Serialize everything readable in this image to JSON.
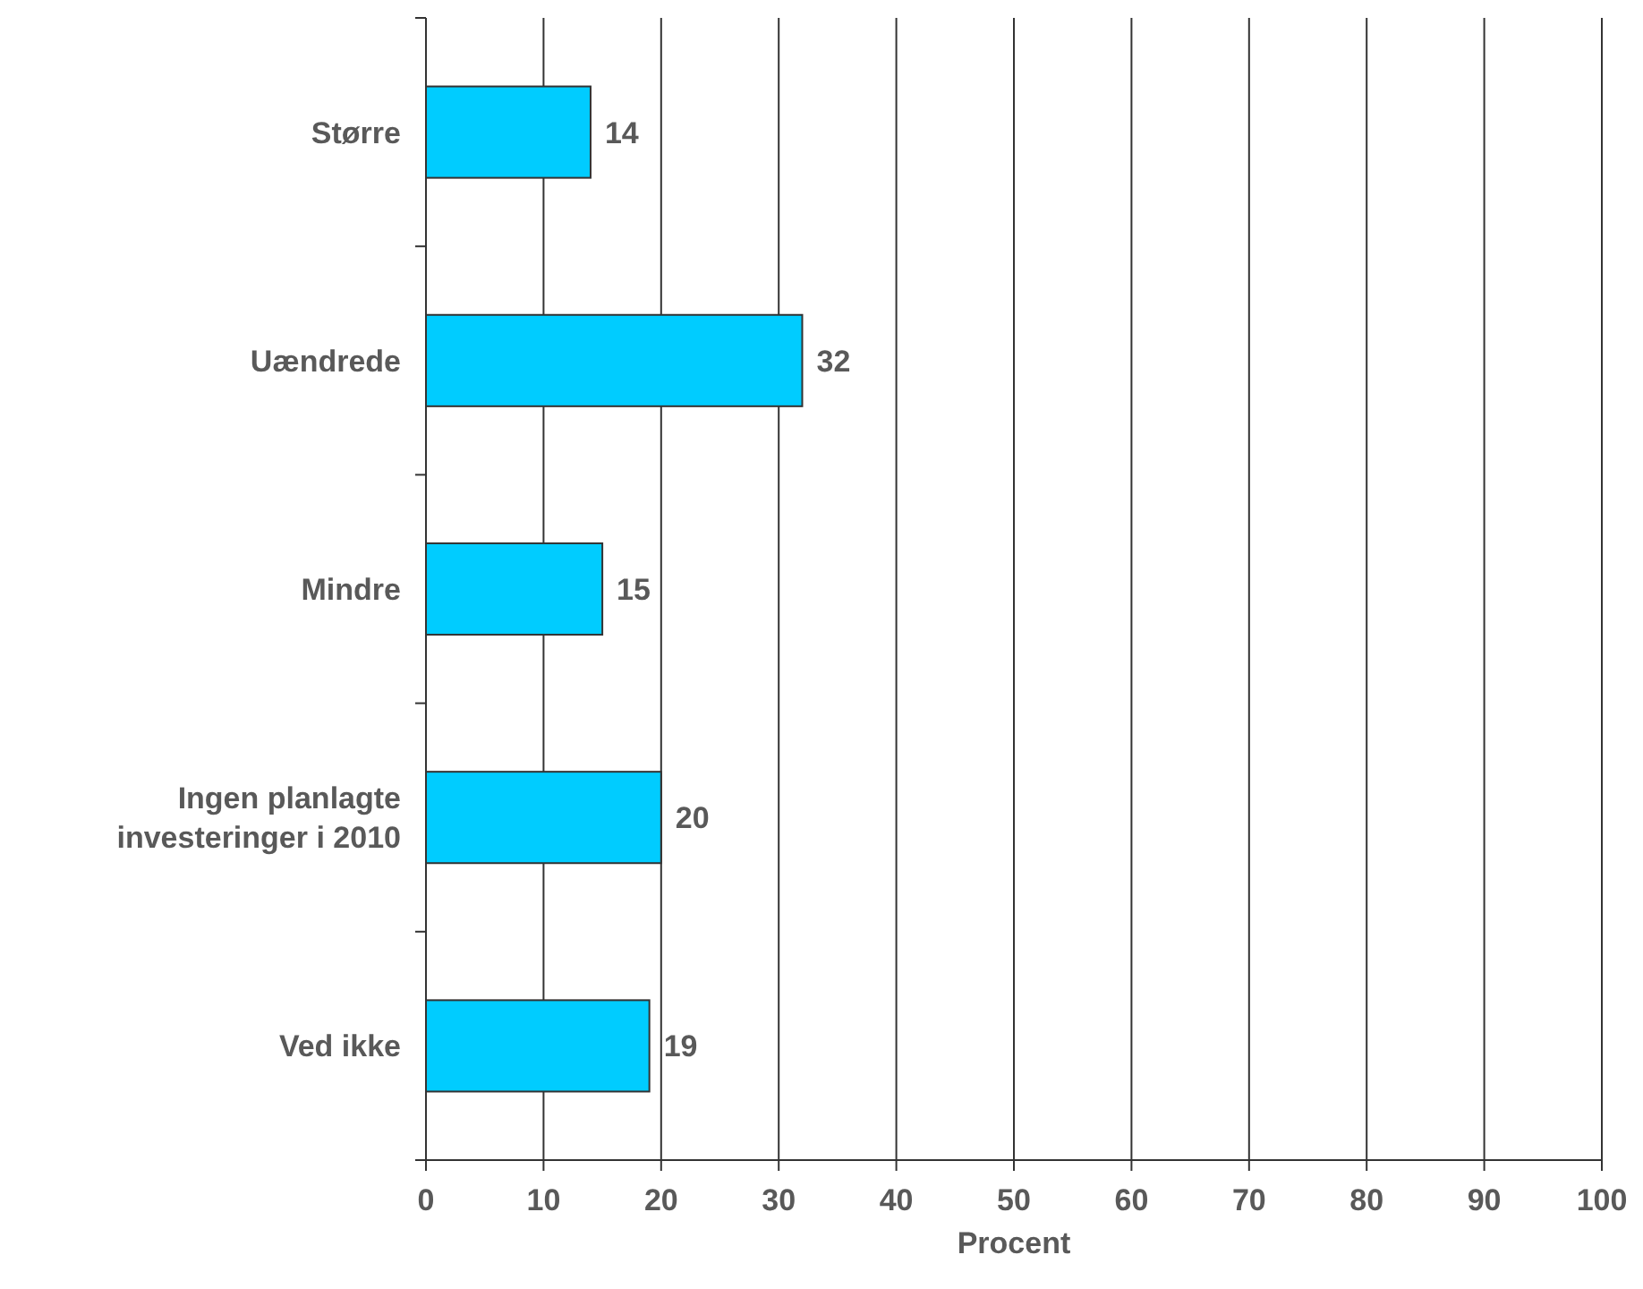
{
  "chart_data": {
    "type": "bar",
    "orientation": "horizontal",
    "xlabel": "Procent",
    "categories": [
      "Større",
      "Uændrede",
      "Mindre",
      "Ingen planlagte investeringer i 2010",
      "Ved ikke"
    ],
    "values": [
      14,
      32,
      15,
      20,
      19
    ],
    "color": "#00ccff",
    "xlim": [
      0,
      100
    ],
    "xticks": [
      0,
      10,
      20,
      30,
      40,
      50,
      60,
      70,
      80,
      90,
      100
    ],
    "grid": "x",
    "data_labels": true
  }
}
